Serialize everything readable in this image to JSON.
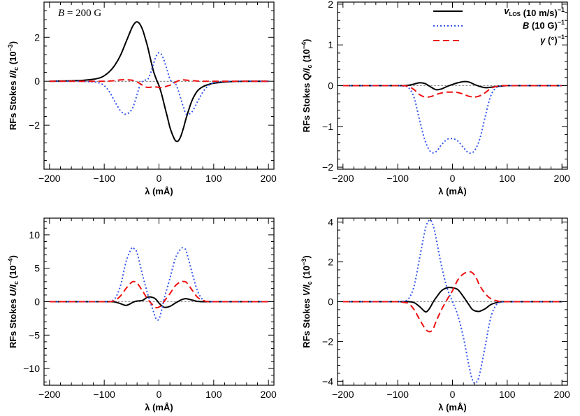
{
  "chart_data": [
    {
      "type": "line",
      "panel": "I",
      "ylabel": "RFs Stokes I/I_c (10^-3)",
      "ylabel_parts": {
        "prefix": "RFs Stokes ",
        "var": "I/I",
        "sub": "c",
        "unit": "(10",
        "exp": "-3",
        "close": ")"
      },
      "xlabel": "λ (mÅ)",
      "xlim": [
        -210,
        210
      ],
      "ylim": [
        -4,
        3.6
      ],
      "xticks": [
        -200,
        -100,
        0,
        100,
        200
      ],
      "yticks": [
        -2,
        0,
        2
      ],
      "annotation": "B = 200 G",
      "x": [
        -200,
        -180,
        -160,
        -140,
        -120,
        -110,
        -100,
        -90,
        -80,
        -70,
        -60,
        -50,
        -45,
        -40,
        -35,
        -30,
        -25,
        -20,
        -15,
        -10,
        -5,
        0,
        5,
        10,
        15,
        20,
        25,
        30,
        35,
        40,
        45,
        50,
        60,
        70,
        80,
        90,
        100,
        110,
        120,
        140,
        160,
        180,
        200
      ],
      "series": [
        {
          "name": "v_LOS (10 m/s)^-1",
          "values": [
            0.0,
            0.01,
            0.02,
            0.04,
            0.09,
            0.14,
            0.25,
            0.45,
            0.75,
            1.2,
            1.8,
            2.4,
            2.62,
            2.7,
            2.6,
            2.35,
            1.95,
            1.5,
            0.95,
            0.45,
            0.1,
            -0.2,
            -0.6,
            -1.1,
            -1.6,
            -2.1,
            -2.45,
            -2.7,
            -2.72,
            -2.5,
            -2.1,
            -1.65,
            -0.9,
            -0.45,
            -0.25,
            -0.15,
            -0.09,
            -0.06,
            -0.03,
            -0.01,
            0.0,
            0.0,
            0.0
          ]
        },
        {
          "name": "B (10 G)^-1",
          "values": [
            0.0,
            0.0,
            0.0,
            -0.01,
            -0.03,
            -0.07,
            -0.2,
            -0.5,
            -0.95,
            -1.35,
            -1.5,
            -1.3,
            -1.0,
            -0.6,
            -0.2,
            0.0,
            0.05,
            0.1,
            0.4,
            0.8,
            1.15,
            1.3,
            1.2,
            0.9,
            0.5,
            0.1,
            -0.05,
            -0.1,
            -0.4,
            -0.8,
            -1.2,
            -1.5,
            -1.4,
            -0.95,
            -0.5,
            -0.2,
            -0.07,
            -0.03,
            -0.01,
            0.0,
            0.0,
            0.0,
            0.0
          ]
        },
        {
          "name": "γ (°)^-1",
          "values": [
            0.0,
            0.0,
            0.0,
            0.0,
            0.0,
            0.0,
            0.0,
            0.01,
            0.03,
            0.06,
            0.07,
            0.05,
            0.02,
            -0.03,
            -0.1,
            -0.18,
            -0.25,
            -0.28,
            -0.27,
            -0.25,
            -0.26,
            -0.28,
            -0.28,
            -0.26,
            -0.22,
            -0.18,
            -0.12,
            -0.05,
            0.02,
            0.05,
            0.06,
            0.05,
            0.03,
            0.01,
            0.0,
            0.0,
            0.0,
            0.0,
            0.0,
            0.0,
            0.0,
            0.0,
            0.0
          ]
        }
      ]
    },
    {
      "type": "line",
      "panel": "Q",
      "ylabel": "RFs Stokes Q/I_c (10^-4)",
      "ylabel_parts": {
        "prefix": "RFs Stokes ",
        "var": "Q/I",
        "sub": "c",
        "unit": "(10",
        "exp": "-4",
        "close": ")"
      },
      "xlabel": "λ (mÅ)",
      "xlim": [
        -210,
        210
      ],
      "ylim": [
        -2.05,
        2.05
      ],
      "xticks": [
        -200,
        -100,
        0,
        100,
        200
      ],
      "yticks": [
        -2,
        -1,
        0,
        1,
        2
      ],
      "x": [
        -200,
        -150,
        -120,
        -100,
        -90,
        -80,
        -70,
        -60,
        -50,
        -40,
        -30,
        -20,
        -10,
        0,
        10,
        20,
        30,
        40,
        50,
        60,
        70,
        80,
        90,
        100,
        120,
        150,
        200
      ],
      "series": [
        {
          "name": "v_LOS (10 m/s)^-1",
          "values": [
            0,
            0,
            0,
            0,
            0,
            0.01,
            0.04,
            0.07,
            0.05,
            -0.03,
            -0.1,
            -0.08,
            -0.02,
            0.03,
            0.07,
            0.1,
            0.09,
            0.03,
            -0.02,
            -0.05,
            -0.04,
            -0.02,
            -0.01,
            0,
            0,
            0,
            0
          ]
        },
        {
          "name": "B (10 G)^-1",
          "values": [
            0,
            0,
            0,
            0,
            -0.01,
            -0.05,
            -0.3,
            -0.85,
            -1.35,
            -1.62,
            -1.62,
            -1.45,
            -1.32,
            -1.3,
            -1.36,
            -1.52,
            -1.65,
            -1.6,
            -1.3,
            -0.75,
            -0.25,
            -0.05,
            -0.01,
            0,
            0,
            0,
            0
          ]
        },
        {
          "name": "γ (°)^-1",
          "values": [
            0,
            0,
            0,
            0,
            0,
            -0.02,
            -0.1,
            -0.22,
            -0.28,
            -0.27,
            -0.22,
            -0.18,
            -0.16,
            -0.16,
            -0.17,
            -0.21,
            -0.26,
            -0.28,
            -0.25,
            -0.17,
            -0.07,
            -0.02,
            0,
            0,
            0,
            0,
            0
          ]
        }
      ],
      "legend": [
        {
          "var": "v",
          "sub": "LOS",
          "unit": " (10 m/s)",
          "exp": "−1"
        },
        {
          "var": "B",
          "sub": "",
          "unit": " (10 G)",
          "exp": "−1"
        },
        {
          "var": "γ",
          "sub": "",
          "unit": " (°)",
          "exp": "−1"
        }
      ]
    },
    {
      "type": "line",
      "panel": "U",
      "ylabel": "RFs Stokes U/I_c (10^-4)",
      "ylabel_parts": {
        "prefix": "RFs Stokes ",
        "var": "U/I",
        "sub": "c",
        "unit": "(10",
        "exp": "-4",
        "close": ")"
      },
      "xlabel": "λ (mÅ)",
      "xlim": [
        -210,
        210
      ],
      "ylim": [
        -12.5,
        12.5
      ],
      "xticks": [
        -200,
        -100,
        0,
        100,
        200
      ],
      "yticks": [
        -10,
        -5,
        0,
        5,
        10
      ],
      "x": [
        -200,
        -150,
        -120,
        -100,
        -90,
        -80,
        -70,
        -60,
        -50,
        -45,
        -40,
        -30,
        -20,
        -10,
        -5,
        0,
        5,
        10,
        20,
        30,
        40,
        45,
        50,
        60,
        70,
        80,
        90,
        100,
        120,
        150,
        200
      ],
      "series": [
        {
          "name": "v_LOS (10 m/s)^-1",
          "values": [
            0,
            0,
            0,
            0,
            0,
            -0.05,
            -0.3,
            -0.55,
            -0.2,
            0,
            0.1,
            0.2,
            0.7,
            0.6,
            0.3,
            -0.2,
            -0.6,
            -0.85,
            -0.7,
            -0.2,
            0.25,
            0.4,
            0.45,
            0.25,
            0.05,
            0,
            0,
            0,
            0,
            0,
            0
          ]
        },
        {
          "name": "B (10 G)^-1",
          "values": [
            0,
            0,
            0,
            0,
            0.05,
            0.5,
            2.5,
            6.0,
            8.0,
            7.9,
            7.3,
            4.0,
            1.0,
            -1.5,
            -2.6,
            -2.6,
            -1.2,
            0.6,
            3.5,
            6.5,
            7.9,
            8.0,
            7.5,
            4.5,
            1.7,
            0.3,
            0.05,
            0,
            0,
            0,
            0
          ]
        },
        {
          "name": "γ (°)^-1",
          "values": [
            0,
            0,
            0,
            0,
            0,
            0.2,
            0.9,
            2.0,
            2.9,
            3.0,
            2.8,
            1.6,
            0.3,
            -0.6,
            -0.9,
            -0.8,
            -0.5,
            0.1,
            1.2,
            2.4,
            3.0,
            3.0,
            2.9,
            1.8,
            0.7,
            0.2,
            0,
            0,
            0,
            0,
            0
          ]
        }
      ]
    },
    {
      "type": "line",
      "panel": "V",
      "ylabel": "RFs Stokes V/I_c (10^-3)",
      "ylabel_parts": {
        "prefix": "RFs Stokes ",
        "var": "V/I",
        "sub": "c",
        "unit": "(10",
        "exp": "-3",
        "close": ")"
      },
      "xlabel": "λ (mÅ)",
      "xlim": [
        -210,
        210
      ],
      "ylim": [
        -4.2,
        4.2
      ],
      "xticks": [
        -200,
        -100,
        0,
        100,
        200
      ],
      "yticks": [
        -4,
        -2,
        0,
        2,
        4
      ],
      "x": [
        -200,
        -150,
        -120,
        -100,
        -90,
        -80,
        -70,
        -60,
        -50,
        -45,
        -40,
        -35,
        -30,
        -20,
        -10,
        0,
        10,
        20,
        30,
        35,
        40,
        45,
        50,
        60,
        70,
        80,
        90,
        100,
        120,
        150,
        200
      ],
      "series": [
        {
          "name": "v_LOS (10 m/s)^-1",
          "values": [
            0,
            0,
            0,
            0,
            0,
            0,
            -0.05,
            -0.25,
            -0.5,
            -0.45,
            -0.25,
            0,
            0.2,
            0.55,
            0.7,
            0.7,
            0.6,
            0.25,
            -0.15,
            -0.35,
            -0.45,
            -0.48,
            -0.48,
            -0.35,
            -0.15,
            -0.05,
            0,
            0,
            0,
            0,
            0
          ]
        },
        {
          "name": "B (10 G)^-1",
          "values": [
            0,
            0,
            0,
            0,
            0.02,
            0.15,
            0.8,
            2.2,
            3.6,
            4.0,
            4.1,
            3.8,
            3.2,
            1.8,
            0.7,
            0,
            -0.7,
            -1.8,
            -3.2,
            -3.8,
            -4.1,
            -4.0,
            -3.6,
            -2.2,
            -0.8,
            -0.15,
            -0.02,
            0,
            0,
            0,
            0
          ]
        },
        {
          "name": "γ (°)^-1",
          "values": [
            0,
            0,
            0,
            0,
            -0.03,
            -0.1,
            -0.4,
            -0.9,
            -1.35,
            -1.48,
            -1.5,
            -1.35,
            -1.0,
            -0.4,
            0.1,
            0.55,
            1.1,
            1.4,
            1.5,
            1.48,
            1.35,
            1.1,
            0.8,
            0.4,
            0.15,
            0.05,
            0,
            0,
            0,
            0,
            0
          ]
        }
      ]
    }
  ],
  "colors": {
    "v_LOS": "#000000",
    "B": "#3355ee",
    "gamma": "#ee1111"
  }
}
